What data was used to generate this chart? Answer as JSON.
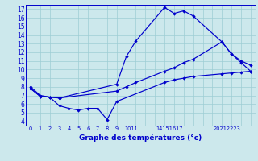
{
  "xlabel": "Graphe des températures (°c)",
  "bg_color": "#cce8ec",
  "grid_color": "#9ecdd4",
  "line_color": "#0000cc",
  "xlim": [
    -0.5,
    23.5
  ],
  "ylim": [
    3.5,
    17.5
  ],
  "yticks": [
    4,
    5,
    6,
    7,
    8,
    9,
    10,
    11,
    12,
    13,
    14,
    15,
    16,
    17
  ],
  "series": [
    {
      "x": [
        0,
        1,
        2,
        3,
        9,
        10,
        11,
        14,
        15,
        16,
        17,
        20,
        21,
        22,
        23
      ],
      "y": [
        8.0,
        7.0,
        6.8,
        6.7,
        8.3,
        11.5,
        13.3,
        17.2,
        16.5,
        16.8,
        16.2,
        13.2,
        11.8,
        10.8,
        9.8
      ]
    },
    {
      "x": [
        0,
        1,
        2,
        3,
        9,
        10,
        11,
        14,
        15,
        16,
        17,
        20,
        21,
        22,
        23
      ],
      "y": [
        7.8,
        6.9,
        6.8,
        6.7,
        7.5,
        8.0,
        8.5,
        9.8,
        10.2,
        10.8,
        11.2,
        13.2,
        11.8,
        11.0,
        10.5
      ]
    },
    {
      "x": [
        0,
        1,
        2,
        3,
        4,
        5,
        6,
        7,
        8,
        9,
        14,
        15,
        16,
        17,
        20,
        21,
        22,
        23
      ],
      "y": [
        7.8,
        6.9,
        6.8,
        5.8,
        5.5,
        5.3,
        5.5,
        5.5,
        4.2,
        6.3,
        8.5,
        8.8,
        9.0,
        9.2,
        9.5,
        9.6,
        9.7,
        9.8
      ]
    }
  ],
  "xtick_positions": [
    0,
    1,
    2,
    3,
    4,
    5,
    6,
    7,
    8,
    9,
    10.5,
    14.5,
    20.5
  ],
  "xtick_labels": [
    "0",
    "1",
    "2",
    "3",
    "4",
    "5",
    "6",
    "7",
    "8",
    "9",
    "1011",
    "14151617",
    "20212223"
  ]
}
